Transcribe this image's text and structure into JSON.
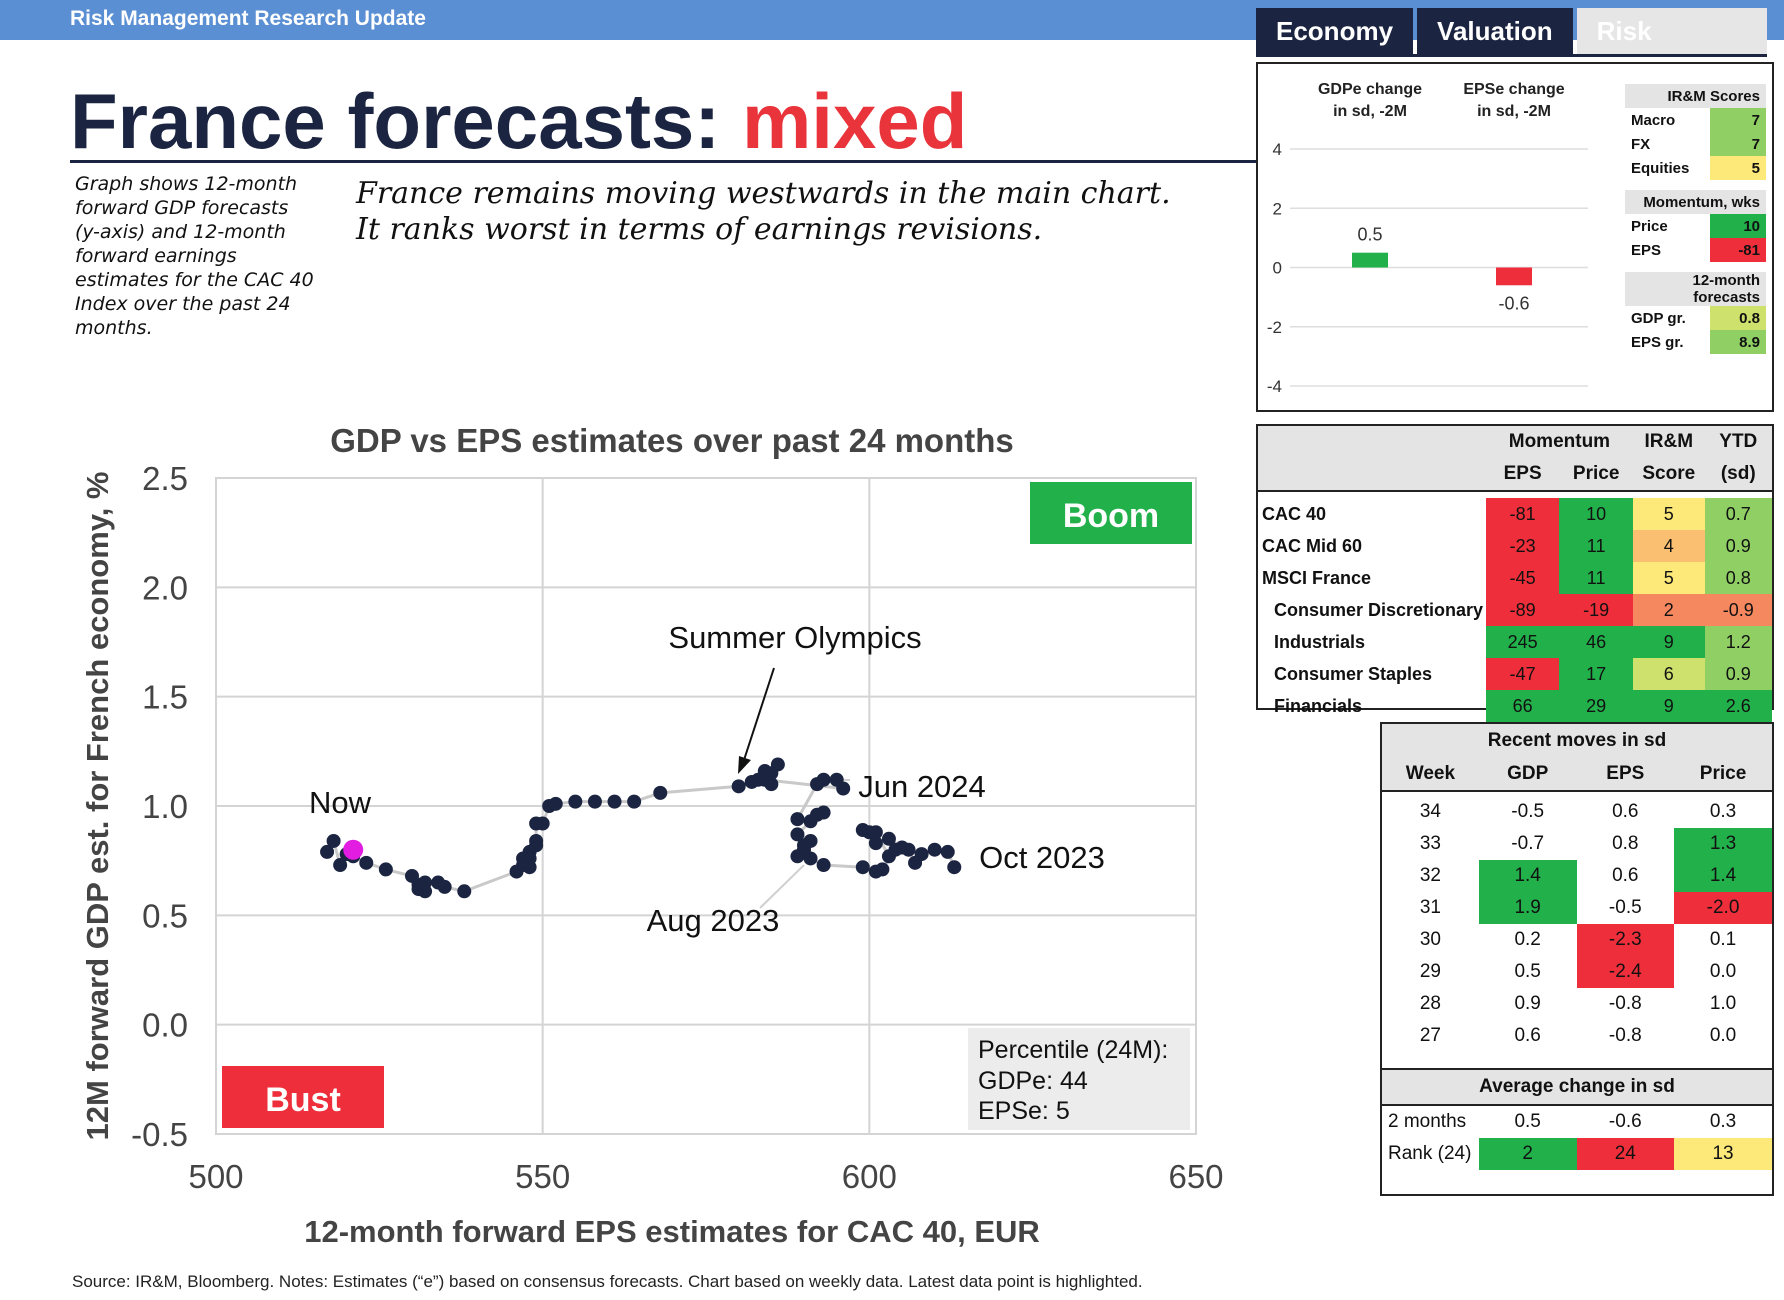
{
  "header": {
    "bar_label": "Risk Management Research Update",
    "tabs": [
      "Economy",
      "Valuation",
      "Risk"
    ],
    "title_main": "France forecasts:",
    "title_highlight": "mixed",
    "side_note": "Graph shows 12-month forward GDP forecasts (y-axis) and 12-month forward earnings estimates for the CAC 40 Index over the past 24 months.",
    "lead_text": "France remains moving westwards in the main chart. It ranks worst in terms of earnings revisions."
  },
  "footer": {
    "source": "Source: IR&M, Bloomberg. Notes: Estimates (“e”) based on consensus forecasts. Chart based on weekly data. Latest data point is highlighted."
  },
  "colors": {
    "navy": "#1b2440",
    "red": "#e8343a",
    "green": "#22b04b",
    "blue_bar": "#5b8fd3",
    "point": "#1b2440",
    "latest_point": "#e21ce0"
  },
  "chart_data": [
    {
      "type": "scatter",
      "title": "GDP vs EPS  estimates over past 24 months",
      "xlabel": "12-month forward EPS estimates for CAC 40, EUR",
      "ylabel": "12M forward GDP est. for French economy, %",
      "xlim": [
        500,
        650
      ],
      "ylim": [
        -0.5,
        2.5
      ],
      "xticks": [
        "500",
        "550",
        "600",
        "650"
      ],
      "yticks": [
        "2.5",
        "2.0",
        "1.5",
        "1.0",
        "0.5",
        "0.0",
        "-0.5"
      ],
      "grid": true,
      "points": [
        [
          613,
          0.72
        ],
        [
          612,
          0.79
        ],
        [
          610,
          0.8
        ],
        [
          608,
          0.78
        ],
        [
          607,
          0.74
        ],
        [
          606,
          0.8
        ],
        [
          605,
          0.81
        ],
        [
          603,
          0.85
        ],
        [
          601,
          0.83
        ],
        [
          600,
          0.88
        ],
        [
          599,
          0.89
        ],
        [
          601,
          0.88
        ],
        [
          603,
          0.77
        ],
        [
          604,
          0.8
        ],
        [
          602,
          0.71
        ],
        [
          601,
          0.7
        ],
        [
          599,
          0.72
        ],
        [
          593,
          0.73
        ],
        [
          591,
          0.76
        ],
        [
          590,
          0.8
        ],
        [
          589,
          0.77
        ],
        [
          590,
          0.82
        ],
        [
          591,
          0.84
        ],
        [
          589,
          0.87
        ],
        [
          592,
          0.96
        ],
        [
          593,
          0.97
        ],
        [
          591,
          0.93
        ],
        [
          589,
          0.94
        ],
        [
          592,
          1.1
        ],
        [
          593,
          1.12
        ],
        [
          595,
          1.12
        ],
        [
          596,
          1.08
        ],
        [
          584,
          1.12
        ],
        [
          585,
          1.1
        ],
        [
          586,
          1.19
        ],
        [
          585,
          1.15
        ],
        [
          584,
          1.16
        ],
        [
          583,
          1.12
        ],
        [
          582,
          1.11
        ],
        [
          580,
          1.09
        ],
        [
          568,
          1.06
        ],
        [
          564,
          1.02
        ],
        [
          561,
          1.02
        ],
        [
          558,
          1.02
        ],
        [
          555,
          1.02
        ],
        [
          552,
          1.01
        ],
        [
          551,
          1.0
        ],
        [
          550,
          0.92
        ],
        [
          549,
          0.92
        ],
        [
          549,
          0.84
        ],
        [
          549,
          0.82
        ],
        [
          548,
          0.79
        ],
        [
          548,
          0.76
        ],
        [
          548,
          0.72
        ],
        [
          547,
          0.76
        ],
        [
          547,
          0.73
        ],
        [
          546,
          0.7
        ],
        [
          538,
          0.61
        ],
        [
          535,
          0.63
        ],
        [
          534,
          0.65
        ],
        [
          532,
          0.65
        ],
        [
          532,
          0.61
        ],
        [
          531,
          0.64
        ],
        [
          531,
          0.62
        ],
        [
          530,
          0.68
        ],
        [
          526,
          0.71
        ],
        [
          523,
          0.74
        ],
        [
          521,
          0.77
        ],
        [
          520,
          0.78
        ],
        [
          519,
          0.73
        ],
        [
          518,
          0.84
        ],
        [
          517,
          0.79
        ]
      ],
      "latest_point": [
        521,
        0.8
      ],
      "annotations": {
        "boom": "Boom",
        "bust": "Bust",
        "summer_olympics": "Summer Olympics",
        "now": "Now",
        "jun_2024": "Jun 2024",
        "oct_2023": "Oct 2023",
        "aug_2023": "Aug 2023"
      },
      "percentile_box": {
        "heading": "Percentile (24M):",
        "gdpe": "GDPe:  44",
        "epse": "EPSe:  5"
      }
    },
    {
      "type": "bar",
      "categories": [
        "GDPe change in sd, -2M",
        "EPSe change in sd, -2M"
      ],
      "category_lines": [
        [
          "GDPe change",
          "in sd, -2M"
        ],
        [
          "EPSe change",
          "in sd, -2M"
        ]
      ],
      "values": [
        0.5,
        -0.6
      ],
      "value_labels": [
        "0.5",
        "-0.6"
      ],
      "ylim": [
        -4,
        4
      ],
      "yticks": [
        "4",
        "2",
        "0",
        "-2",
        "-4"
      ]
    }
  ],
  "scores_panel": {
    "section1_title": "IR&M Scores",
    "section1": [
      {
        "label": "Macro",
        "value": "7",
        "color": "#8fcf64"
      },
      {
        "label": "FX",
        "value": "7",
        "color": "#8fcf64"
      },
      {
        "label": "Equities",
        "value": "5",
        "color": "#fde87a"
      }
    ],
    "section2_title": "Momentum, wks",
    "section2": [
      {
        "label": "Price",
        "value": "10",
        "color": "#22b04b"
      },
      {
        "label": "EPS",
        "value": "-81",
        "color": "#ee2e3a"
      }
    ],
    "section3_title": "12-month forecasts",
    "section3": [
      {
        "label": "GDP gr.",
        "value": "0.8",
        "color": "#cfe16d"
      },
      {
        "label": "EPS gr.",
        "value": "8.9",
        "color": "#8fcf64"
      }
    ]
  },
  "index_table": {
    "header_top": [
      "Momentum",
      "IR&M",
      "YTD"
    ],
    "header_sub": [
      "EPS",
      "Price",
      "Score",
      "(sd)"
    ],
    "rows": [
      {
        "name": "CAC 40",
        "indent": false,
        "eps": "-81",
        "price": "10",
        "score": "5",
        "ytd": "0.7",
        "colors": [
          "#ee2e3a",
          "#22b04b",
          "#fde87a",
          "#8fcf64"
        ]
      },
      {
        "name": "CAC Mid 60",
        "indent": false,
        "eps": "-23",
        "price": "11",
        "score": "4",
        "ytd": "0.9",
        "colors": [
          "#ee2e3a",
          "#22b04b",
          "#fbbf72",
          "#8fcf64"
        ]
      },
      {
        "name": "MSCI France",
        "indent": false,
        "eps": "-45",
        "price": "11",
        "score": "5",
        "ytd": "0.8",
        "colors": [
          "#ee2e3a",
          "#22b04b",
          "#fde87a",
          "#8fcf64"
        ]
      },
      {
        "name": "Consumer Discretionary",
        "indent": true,
        "eps": "-89",
        "price": "-19",
        "score": "2",
        "ytd": "-0.9",
        "colors": [
          "#ee2e3a",
          "#ee2e3a",
          "#f6885f",
          "#f6885f"
        ]
      },
      {
        "name": "Industrials",
        "indent": true,
        "eps": "245",
        "price": "46",
        "score": "9",
        "ytd": "1.2",
        "colors": [
          "#22b04b",
          "#22b04b",
          "#22b04b",
          "#8fcf64"
        ]
      },
      {
        "name": "Consumer Staples",
        "indent": true,
        "eps": "-47",
        "price": "17",
        "score": "6",
        "ytd": "0.9",
        "colors": [
          "#ee2e3a",
          "#22b04b",
          "#cfe16d",
          "#8fcf64"
        ]
      },
      {
        "name": "Financials",
        "indent": true,
        "eps": "66",
        "price": "29",
        "score": "9",
        "ytd": "2.6",
        "colors": [
          "#22b04b",
          "#22b04b",
          "#22b04b",
          "#22b04b"
        ]
      }
    ]
  },
  "moves_table": {
    "title": "Recent moves in sd",
    "columns": [
      "Week",
      "GDP",
      "EPS",
      "Price"
    ],
    "rows": [
      {
        "week": "34",
        "gdp": "-0.5",
        "eps": "0.6",
        "price": "0.3",
        "colors": [
          "",
          "",
          ""
        ]
      },
      {
        "week": "33",
        "gdp": "-0.7",
        "eps": "0.8",
        "price": "1.3",
        "colors": [
          "",
          "",
          "#22b04b"
        ]
      },
      {
        "week": "32",
        "gdp": "1.4",
        "eps": "0.6",
        "price": "1.4",
        "colors": [
          "#22b04b",
          "",
          "#22b04b"
        ]
      },
      {
        "week": "31",
        "gdp": "1.9",
        "eps": "-0.5",
        "price": "-2.0",
        "colors": [
          "#22b04b",
          "",
          "#ee2e3a"
        ]
      },
      {
        "week": "30",
        "gdp": "0.2",
        "eps": "-2.3",
        "price": "0.1",
        "colors": [
          "",
          "#ee2e3a",
          ""
        ]
      },
      {
        "week": "29",
        "gdp": "0.5",
        "eps": "-2.4",
        "price": "0.0",
        "colors": [
          "",
          "#ee2e3a",
          ""
        ]
      },
      {
        "week": "28",
        "gdp": "0.9",
        "eps": "-0.8",
        "price": "1.0",
        "colors": [
          "",
          "",
          ""
        ]
      },
      {
        "week": "27",
        "gdp": "0.6",
        "eps": "-0.8",
        "price": "0.0",
        "colors": [
          "",
          "",
          ""
        ]
      }
    ],
    "avg_title": "Average change in sd",
    "avg_rows": [
      {
        "label": "2 months",
        "gdp": "0.5",
        "eps": "-0.6",
        "price": "0.3",
        "colors": [
          "",
          "",
          ""
        ]
      },
      {
        "label": "Rank (24)",
        "gdp": "2",
        "eps": "24",
        "price": "13",
        "colors": [
          "#22b04b",
          "#ee2e3a",
          "#fde87a"
        ]
      }
    ]
  }
}
